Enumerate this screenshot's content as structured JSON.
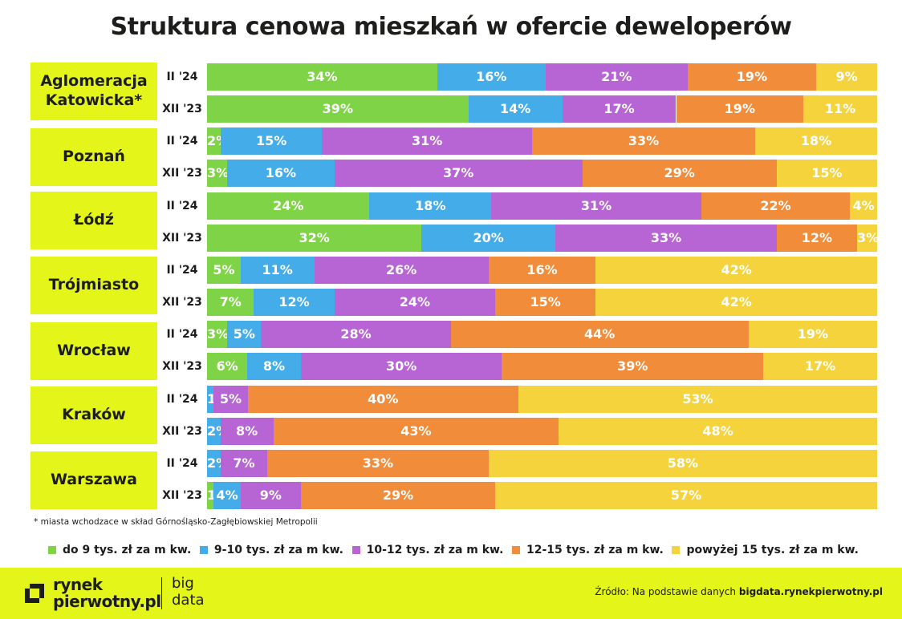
{
  "title": "Struktura cenowa mieszkań w ofercie deweloperów",
  "footnote": "* miasta wchodzace w skład Górnośląsko-Zagłębiowskiej Metropolii",
  "source_prefix": "Źródło: Na podstawie danych",
  "source_site": "bigdata.rynekpierwotny.pl",
  "logo": {
    "rynek": "rynek",
    "pierwotny": "pierwotny.pl",
    "big": "big",
    "data": "data"
  },
  "colors": {
    "accent": "#e4f51a",
    "series": [
      "#7ed346",
      "#44ade9",
      "#b764d5",
      "#f08c3a",
      "#f5d33d"
    ]
  },
  "chart_data": {
    "type": "bar",
    "orientation": "horizontal",
    "stacked": "100%",
    "title": "Struktura cenowa mieszkań w ofercie deweloperów",
    "series": [
      {
        "name": "do 9 tys. zł za m kw."
      },
      {
        "name": "9-10 tys. zł za m kw."
      },
      {
        "name": "10-12 tys. zł za m kw."
      },
      {
        "name": "12-15 tys. zł za m kw."
      },
      {
        "name": "powyżej 15 tys. zł za m kw."
      }
    ],
    "groups": [
      {
        "city": "Aglomeracja\nKatowicka*",
        "rows": [
          {
            "period": "II '24",
            "values": [
              34,
              16,
              21,
              19,
              9
            ]
          },
          {
            "period": "XII '23",
            "values": [
              39,
              14,
              17,
              19,
              11
            ]
          }
        ]
      },
      {
        "city": "Poznań",
        "rows": [
          {
            "period": "II '24",
            "values": [
              2,
              15,
              31,
              33,
              18
            ]
          },
          {
            "period": "XII '23",
            "values": [
              3,
              16,
              37,
              29,
              15
            ]
          }
        ]
      },
      {
        "city": "Łódź",
        "rows": [
          {
            "period": "II '24",
            "values": [
              24,
              18,
              31,
              22,
              4
            ]
          },
          {
            "period": "XII '23",
            "values": [
              32,
              20,
              33,
              12,
              3
            ]
          }
        ]
      },
      {
        "city": "Trójmiasto",
        "rows": [
          {
            "period": "II '24",
            "values": [
              5,
              11,
              26,
              16,
              42
            ]
          },
          {
            "period": "XII '23",
            "values": [
              7,
              12,
              24,
              15,
              42
            ]
          }
        ]
      },
      {
        "city": "Wrocław",
        "rows": [
          {
            "period": "II '24",
            "values": [
              3,
              5,
              28,
              44,
              19
            ]
          },
          {
            "period": "XII '23",
            "values": [
              6,
              8,
              30,
              39,
              17
            ]
          }
        ]
      },
      {
        "city": "Kraków",
        "rows": [
          {
            "period": "II '24",
            "values": [
              1,
              5,
              40,
              53
            ],
            "series_index": [
              1,
              2,
              3,
              4
            ]
          },
          {
            "period": "XII '23",
            "values": [
              2,
              8,
              43,
              48
            ],
            "series_index": [
              1,
              2,
              3,
              4
            ]
          }
        ]
      },
      {
        "city": "Warszawa",
        "rows": [
          {
            "period": "II '24",
            "values": [
              2,
              7,
              33,
              58
            ],
            "series_index": [
              1,
              2,
              3,
              4
            ]
          },
          {
            "period": "XII '23",
            "values": [
              1,
              4,
              9,
              29,
              57
            ]
          }
        ]
      }
    ]
  }
}
